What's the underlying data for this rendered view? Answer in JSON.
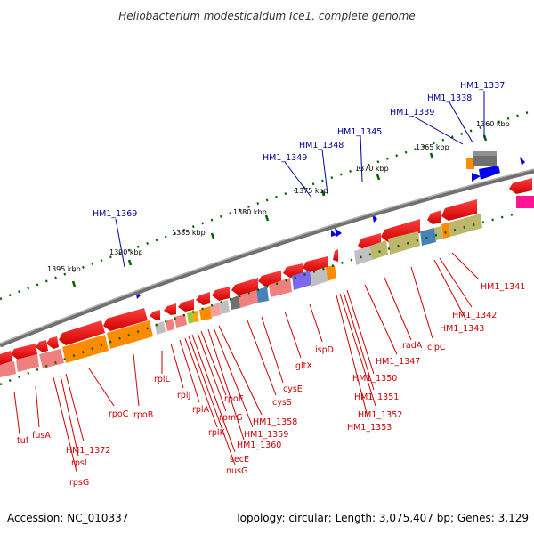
{
  "title": "Heliobacterium modesticaldum Ice1, complete genome",
  "footer": {
    "accession": "Accession: NC_010337",
    "summary": "Topology: circular; Length: 3,075,407 bp; Genes: 3,129"
  },
  "ticks": [
    "1360 kbp",
    "1365 kbp",
    "1370 kbp",
    "1375 kbp",
    "1380 kbp",
    "1385 kbp",
    "1390 kbp",
    "1395 kbp"
  ],
  "top_labels": [
    "HM1_1337",
    "HM1_1338",
    "HM1_1339",
    "HM1_1345",
    "HM1_1348",
    "HM1_1349",
    "HM1_1369"
  ],
  "bottom_labels": [
    "HM1_1341",
    "HM1_1342",
    "HM1_1343",
    "clpC",
    "radA",
    "HM1_1347",
    "HM1_1350",
    "HM1_1351",
    "HM1_1352",
    "HM1_1353",
    "ispD",
    "gltX",
    "cysE",
    "cysS",
    "HM1_1358",
    "HM1_1359",
    "HM1_1360",
    "rpoE",
    "rpmG",
    "secE",
    "nusG",
    "rplK",
    "rplA",
    "rplJ",
    "rplL",
    "rpoB",
    "rpoC",
    "HM1_1372",
    "rpsL",
    "rpsG",
    "fusA",
    "tuf"
  ],
  "colors": {
    "backbone": "#808080",
    "gene_red": "#ee0000",
    "cog_orange": "#ff8c00",
    "cog_olive": "#bdb76b",
    "cog_grey": "#bbbbbb",
    "cog_pink": "#f08080",
    "cog_blue": "#4682b4",
    "cog_purple": "#7b68ee",
    "tick_green": "#006400",
    "label_blue": "#000099",
    "label_red": "#cc0000"
  }
}
